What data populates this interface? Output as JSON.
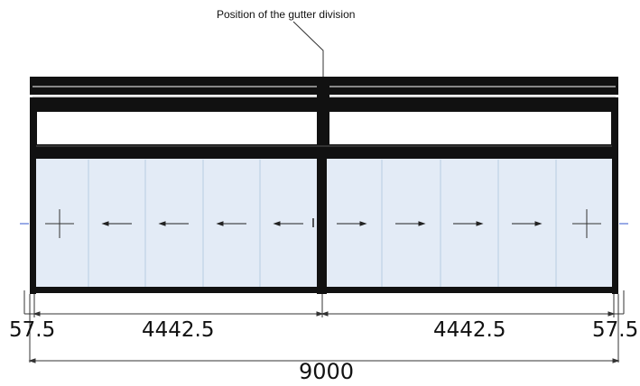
{
  "annotation": {
    "text": "Position of the gutter division"
  },
  "dimensions": {
    "left_offset": "57.5",
    "left_span": "4442.5",
    "right_span": "4442.5",
    "right_offset": "57.5",
    "total": "9000"
  },
  "panels": {
    "left": [
      "fixed",
      "left",
      "left",
      "left",
      "left"
    ],
    "right": [
      "right",
      "right",
      "right",
      "right",
      "fixed"
    ]
  },
  "colors": {
    "frame": "#111111",
    "glass": "#e3ebf6",
    "glass_divider": "#b7cde3",
    "line": "#333333",
    "marker": "#3355cc"
  }
}
